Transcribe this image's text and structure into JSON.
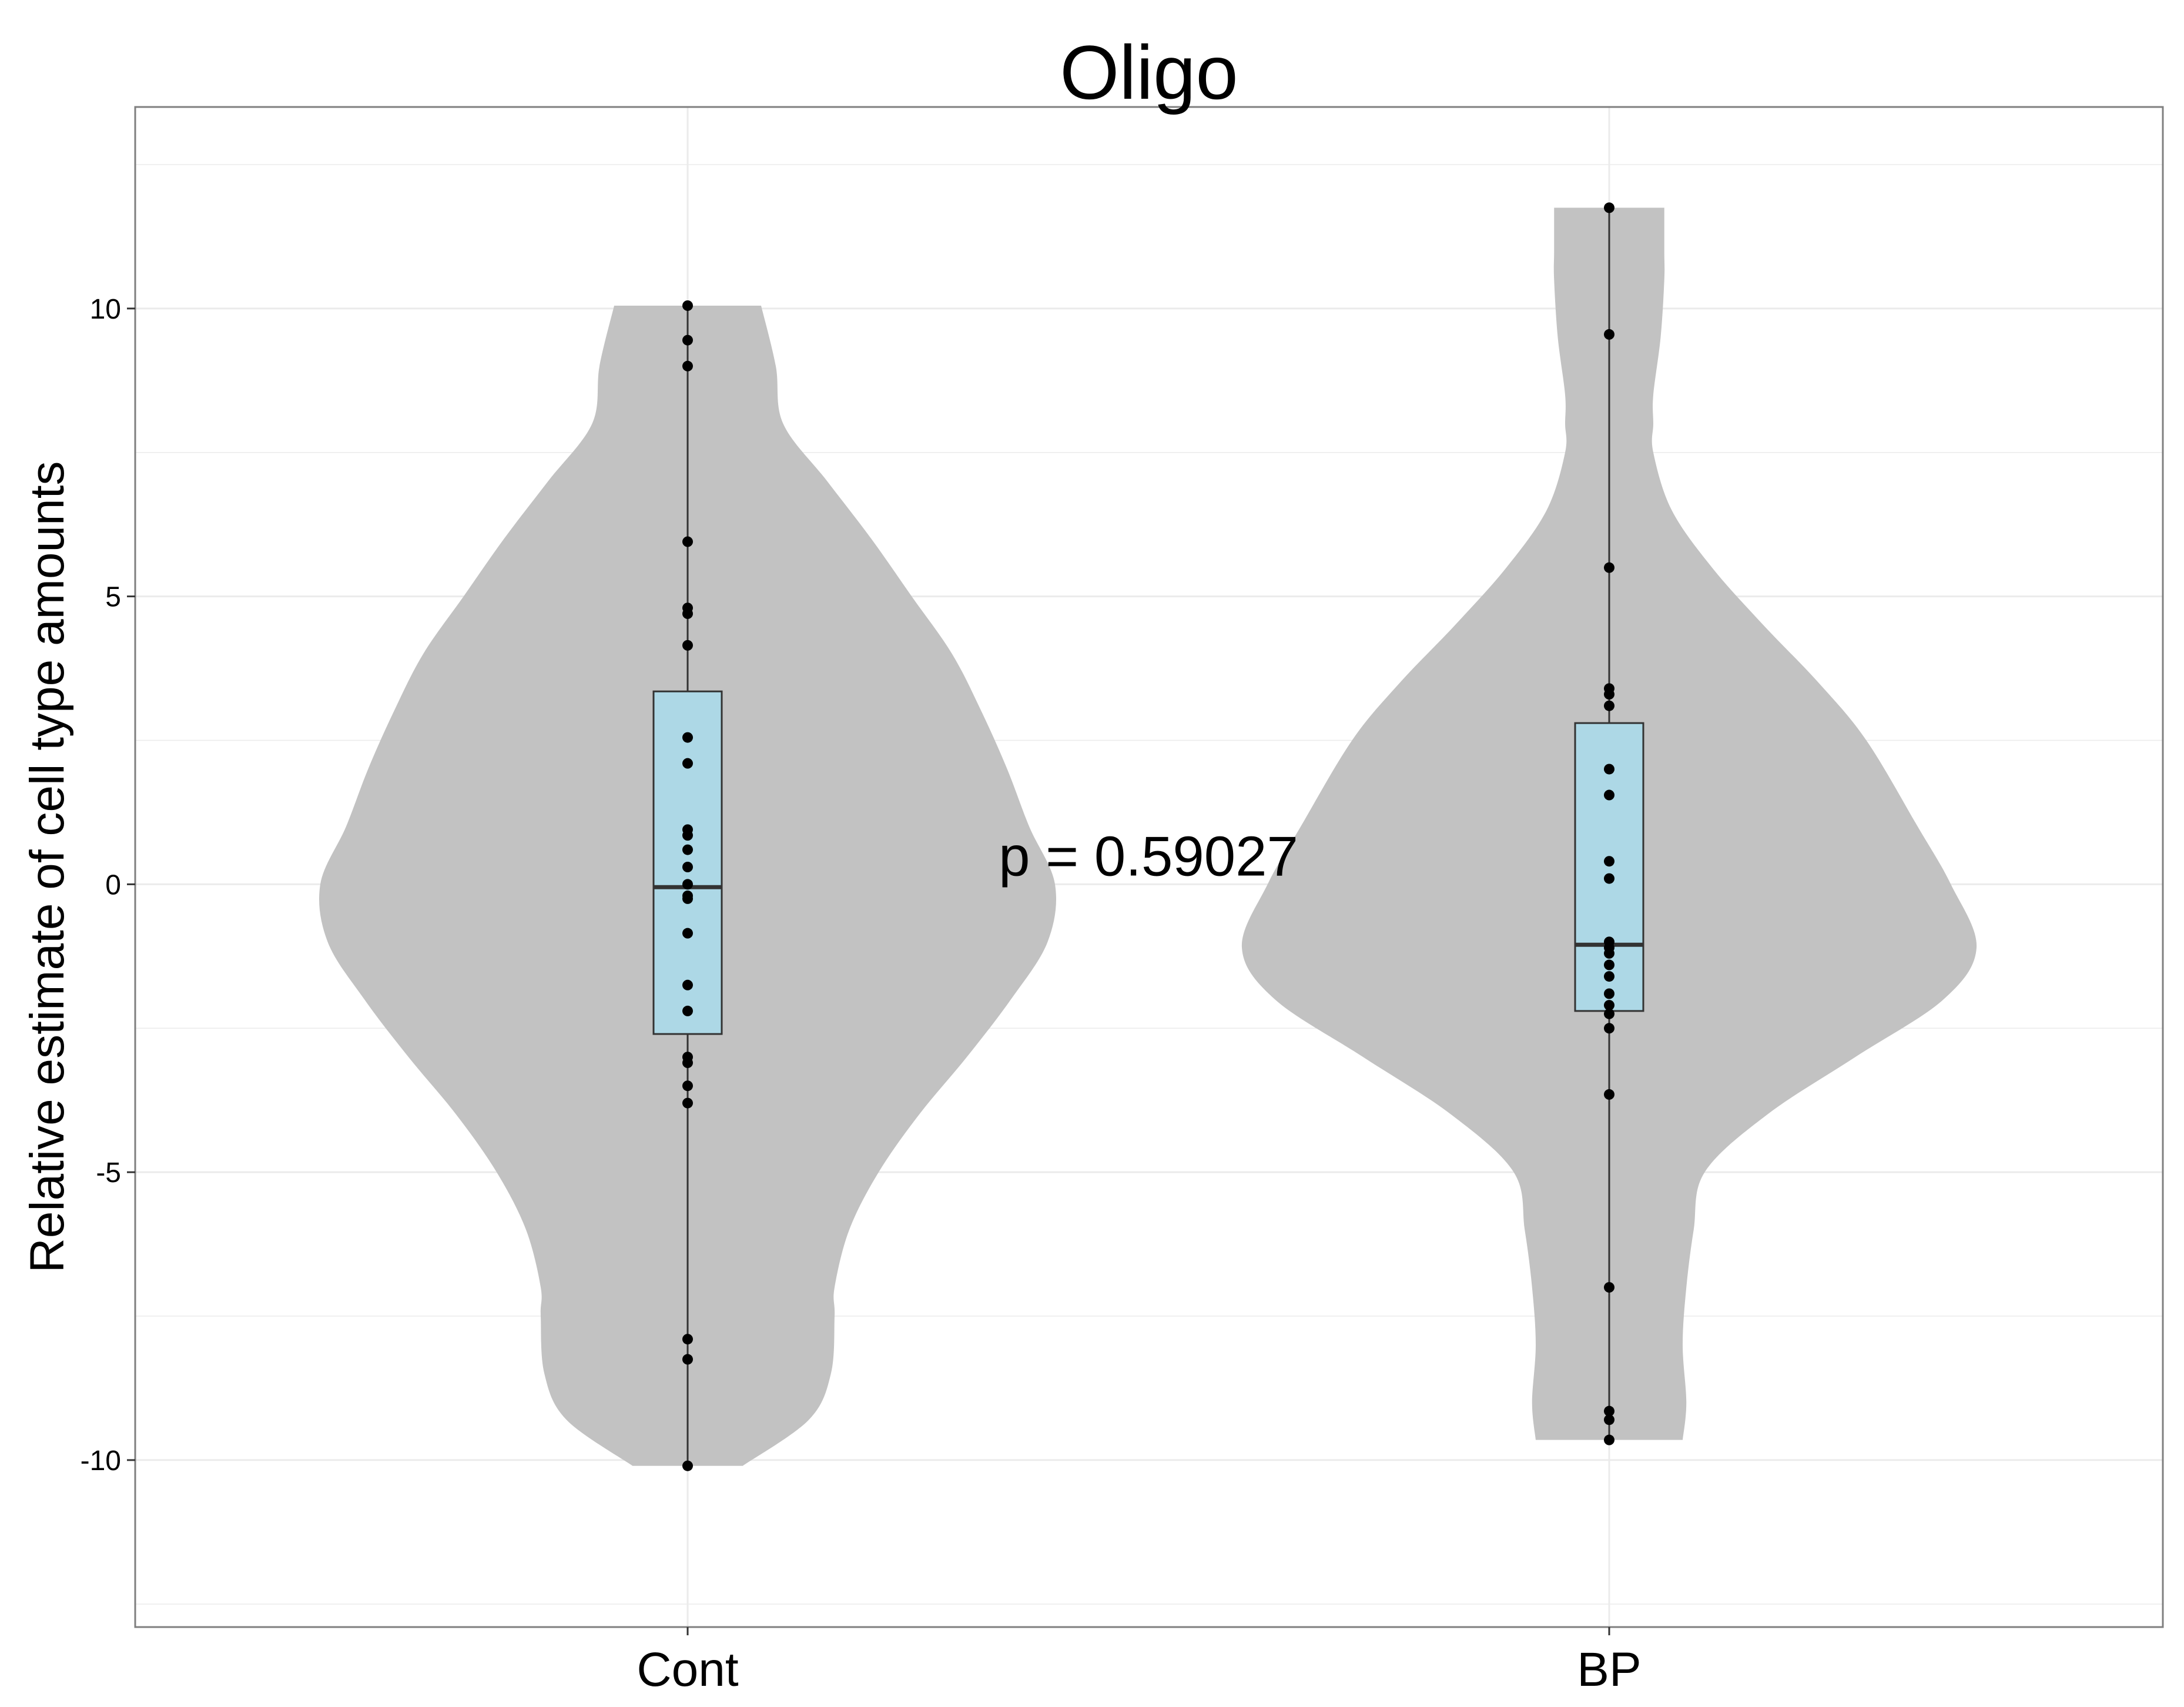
{
  "chart_data": {
    "type": "violin",
    "title": "Oligo",
    "xlabel": "",
    "ylabel": "Relative estimate of cell type amounts",
    "categories": [
      "Cont",
      "BP"
    ],
    "y_ticks": [
      10,
      5,
      0,
      -5,
      -10
    ],
    "y_tick_labels": [
      "10",
      "5",
      "0",
      "-5",
      "-10"
    ],
    "ylim": [
      -12.9,
      13.5
    ],
    "grid": true,
    "annotation": "p = 0.59027",
    "colors": {
      "violin": "#c2c2c2",
      "box": "#add8e6",
      "points": "#000000",
      "grid": "#ebebeb",
      "panel_border": "#7f7f7f"
    },
    "groups": [
      {
        "name": "Cont",
        "box": {
          "q1": -2.6,
          "median": -0.05,
          "q3": 3.35,
          "whisker_low": -10.1,
          "whisker_high": 10.05
        },
        "points": [
          10.05,
          9.45,
          9.0,
          5.95,
          4.8,
          4.7,
          4.15,
          2.55,
          2.1,
          0.95,
          0.85,
          0.6,
          0.3,
          0.0,
          -0.2,
          -0.25,
          -0.85,
          -1.75,
          -2.2,
          -3.0,
          -3.1,
          -3.5,
          -3.8,
          -7.9,
          -8.25,
          -10.1
        ],
        "density_y": [
          10.05,
          9.0,
          8.0,
          7.0,
          6.0,
          5.0,
          4.0,
          3.0,
          2.0,
          1.0,
          0.0,
          -1.0,
          -2.0,
          -3.0,
          -4.0,
          -5.0,
          -6.0,
          -7.0,
          -7.5,
          -8.5,
          -9.3,
          -10.1
        ],
        "density_w": [
          0.2,
          0.24,
          0.26,
          0.38,
          0.5,
          0.61,
          0.72,
          0.8,
          0.87,
          0.93,
          1.0,
          0.98,
          0.88,
          0.76,
          0.63,
          0.52,
          0.44,
          0.4,
          0.4,
          0.39,
          0.33,
          0.15
        ]
      },
      {
        "name": "BP",
        "box": {
          "q1": -2.2,
          "median": -1.05,
          "q3": 2.8,
          "whisker_low": -9.65,
          "whisker_high": 11.75
        },
        "points": [
          11.75,
          9.55,
          5.5,
          3.4,
          3.3,
          3.1,
          2.0,
          1.55,
          0.4,
          0.1,
          -1.0,
          -1.1,
          -1.2,
          -1.4,
          -1.6,
          -1.9,
          -2.1,
          -2.25,
          -2.5,
          -3.65,
          -7.0,
          -9.15,
          -9.3,
          -9.65
        ],
        "density_y": [
          11.75,
          11.0,
          10.5,
          9.5,
          8.5,
          8.0,
          7.5,
          6.5,
          5.5,
          4.5,
          3.5,
          2.5,
          1.0,
          0.0,
          -1.1,
          -2.0,
          -3.0,
          -4.0,
          -5.0,
          -6.0,
          -7.0,
          -8.0,
          -9.0,
          -9.65
        ],
        "density_w": [
          0.15,
          0.15,
          0.15,
          0.14,
          0.12,
          0.12,
          0.12,
          0.17,
          0.28,
          0.42,
          0.57,
          0.7,
          0.84,
          0.93,
          1.0,
          0.91,
          0.67,
          0.43,
          0.26,
          0.23,
          0.21,
          0.2,
          0.21,
          0.2
        ]
      }
    ]
  }
}
